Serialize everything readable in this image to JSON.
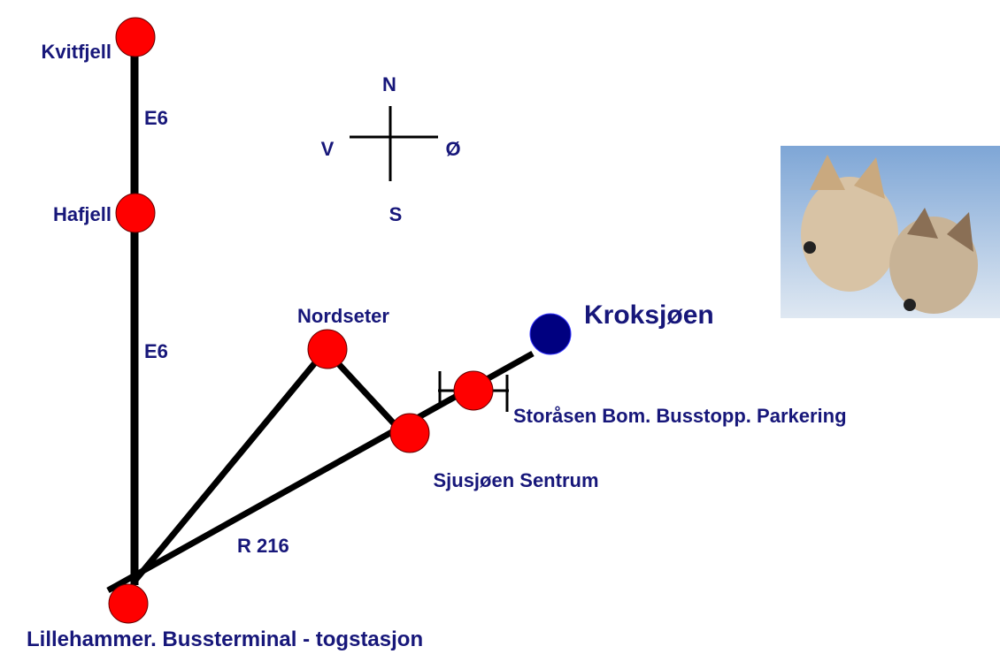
{
  "places": [
    {
      "label": "Kvitfjell"
    },
    {
      "label": "Hafjell"
    },
    {
      "label": "Nordseter"
    },
    {
      "label": "Sjusjøen Sentrum"
    },
    {
      "label": "Storåsen Bom. Busstopp. Parkering"
    },
    {
      "label": "Kroksjøen"
    },
    {
      "label": "Lillehammer. Bussterminal - togstasjon"
    }
  ],
  "roads": [
    "E6",
    "E6",
    "R 216"
  ],
  "compass": {
    "north": "N",
    "west": "V",
    "east": "Ø",
    "south": "S"
  }
}
